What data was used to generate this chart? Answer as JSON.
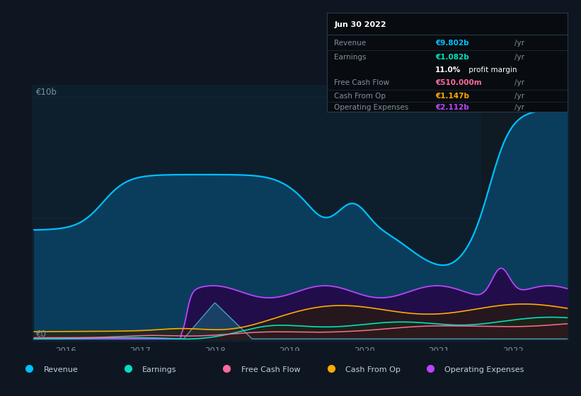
{
  "bg_color": "#0e1621",
  "plot_bg_color": "#0d1f2d",
  "highlight_bg_color": "#1a2535",
  "grid_color": "#1e3045",
  "text_color": "#7a8fa0",
  "ylabel_10b": "€10b",
  "ylabel_0": "€0",
  "xlabel_ticks": [
    2016,
    2017,
    2018,
    2019,
    2020,
    2021,
    2022
  ],
  "series": {
    "Revenue": {
      "color": "#00bfff",
      "fill_color": "#0a3d5c"
    },
    "Earnings": {
      "color": "#00e0c0",
      "fill_color": "#003830"
    },
    "Free Cash Flow": {
      "color": "#ff6b9d",
      "fill_color": "#3a1020"
    },
    "Cash From Op": {
      "color": "#ffaa00",
      "fill_color": "#2a1f00"
    },
    "Operating Expenses": {
      "color": "#bb44ff",
      "fill_color": "#25084a"
    }
  },
  "tooltip": {
    "date": "Jun 30 2022",
    "bg_color": "#080c10",
    "border_color": "#2a3a4a",
    "revenue_label": "Revenue",
    "revenue_value": "€9.802b",
    "revenue_unit": "/yr",
    "revenue_color": "#00bfff",
    "earnings_label": "Earnings",
    "earnings_value": "€1.082b",
    "earnings_unit": "/yr",
    "earnings_color": "#00e0c0",
    "profit_pct": "11.0%",
    "profit_text": " profit margin",
    "fcf_label": "Free Cash Flow",
    "fcf_value": "€510.000m",
    "fcf_unit": "/yr",
    "fcf_color": "#ff6b9d",
    "cop_label": "Cash From Op",
    "cop_value": "€1.147b",
    "cop_unit": "/yr",
    "cop_color": "#ffaa00",
    "opex_label": "Operating Expenses",
    "opex_value": "€2.112b",
    "opex_unit": "/yr",
    "opex_color": "#bb44ff"
  },
  "legend": [
    {
      "label": "Revenue",
      "color": "#00bfff"
    },
    {
      "label": "Earnings",
      "color": "#00e0c0"
    },
    {
      "label": "Free Cash Flow",
      "color": "#ff6b9d"
    },
    {
      "label": "Cash From Op",
      "color": "#ffaa00"
    },
    {
      "label": "Operating Expenses",
      "color": "#bb44ff"
    }
  ],
  "highlight_x_start": 2021.58,
  "highlight_x_end": 2022.75,
  "xmin": 2015.55,
  "xmax": 2022.75,
  "ymin": -0.15,
  "ymax": 10.5,
  "fig_width": 8.21,
  "fig_height": 5.6,
  "dpi": 100
}
